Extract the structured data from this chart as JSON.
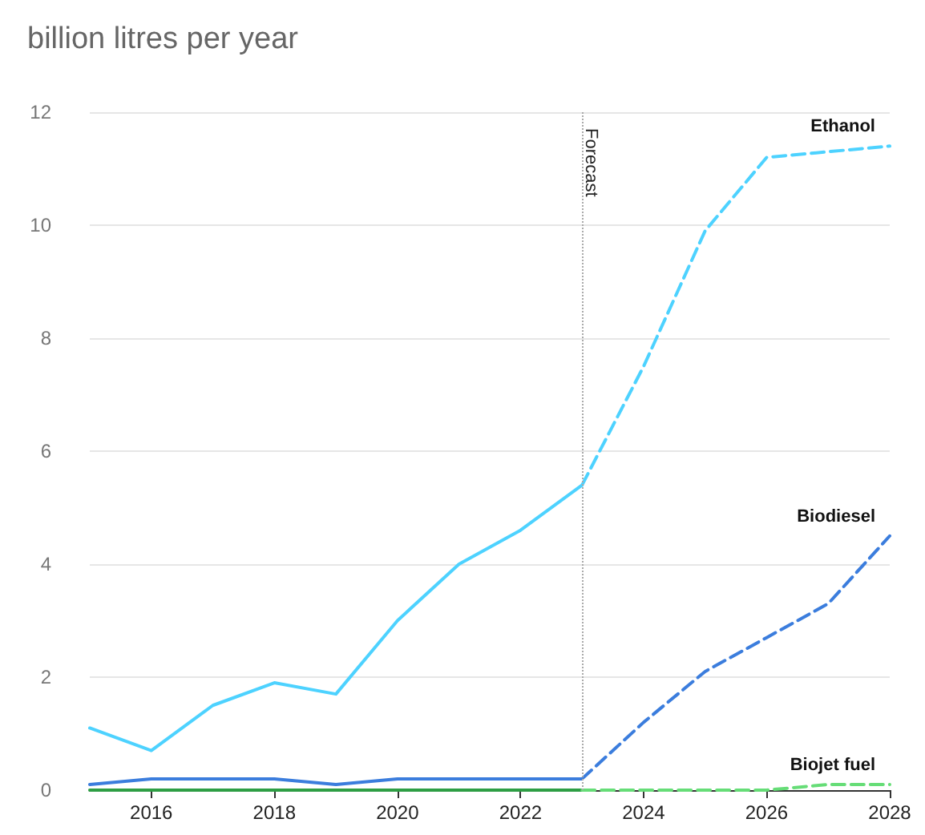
{
  "chart_data": {
    "type": "line",
    "title": "billion litres per year",
    "x": [
      2015,
      2016,
      2017,
      2018,
      2019,
      2020,
      2021,
      2022,
      2023,
      2024,
      2025,
      2026,
      2027,
      2028
    ],
    "series": [
      {
        "color": "#4dd2ff",
        "line_style": "solid",
        "values": [
          1.1,
          0.7,
          1.5,
          1.9,
          1.7,
          3.0,
          4.0,
          4.6,
          5.4,
          null,
          null,
          null,
          null,
          null
        ]
      },
      {
        "name": "Ethanol",
        "color": "#4dd2ff",
        "line_style": "dashed",
        "values": [
          null,
          null,
          null,
          null,
          null,
          null,
          null,
          null,
          5.4,
          7.5,
          9.9,
          11.2,
          11.3,
          11.4
        ]
      },
      {
        "color": "#3b7ddd",
        "line_style": "solid",
        "values": [
          0.1,
          0.2,
          0.2,
          0.2,
          0.1,
          0.2,
          0.2,
          0.2,
          0.2,
          null,
          null,
          null,
          null,
          null
        ]
      },
      {
        "name": "Biodiesel",
        "color": "#3b7ddd",
        "line_style": "dashed",
        "values": [
          null,
          null,
          null,
          null,
          null,
          null,
          null,
          null,
          0.2,
          1.2,
          2.1,
          2.7,
          3.3,
          4.5
        ]
      },
      {
        "color": "#2e9e44",
        "line_style": "solid",
        "values": [
          0,
          0,
          0,
          0,
          0,
          0,
          0,
          0,
          0,
          null,
          null,
          null,
          null,
          null
        ]
      },
      {
        "name": "Biojet fuel",
        "color": "#66dd77",
        "line_style": "dashed",
        "values": [
          null,
          null,
          null,
          null,
          null,
          null,
          null,
          null,
          0,
          0,
          0,
          0,
          0.1,
          0.1
        ]
      }
    ],
    "xlim": [
      2015,
      2028
    ],
    "xticks": [
      2016,
      2018,
      2020,
      2022,
      2024,
      2026,
      2028
    ],
    "ylim": [
      0,
      12
    ],
    "yticks": [
      0,
      2,
      4,
      6,
      8,
      10,
      12
    ],
    "ref_lines": [
      {
        "axis": "x",
        "value": 2023,
        "label": "Forecast",
        "color": "#aaaaaa",
        "line_style": "dotted"
      }
    ],
    "grid": "y",
    "legend": false,
    "marker": "none"
  }
}
